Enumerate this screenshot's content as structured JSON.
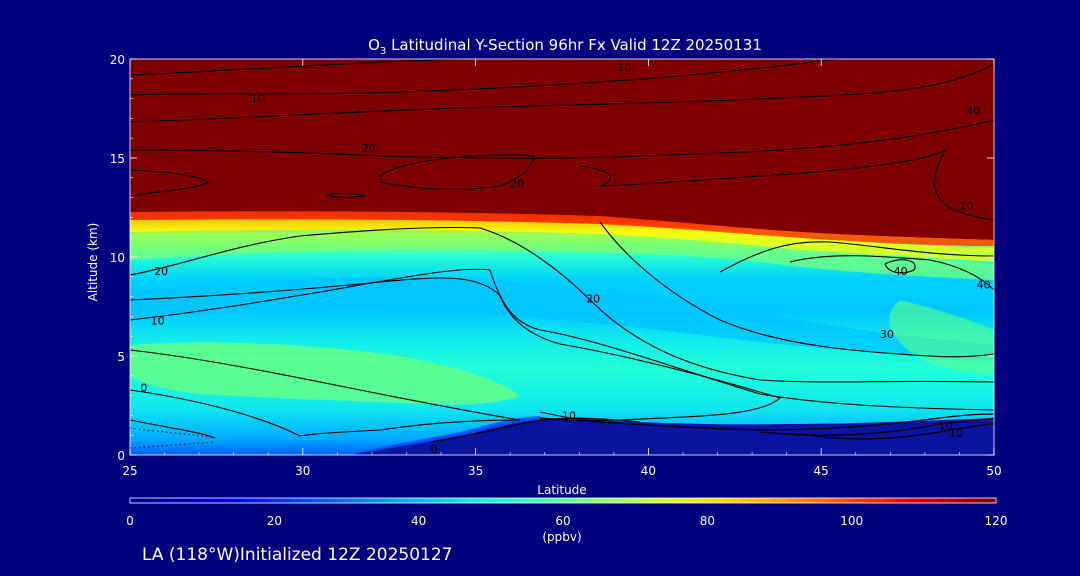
{
  "chart_data": {
    "type": "heatmap",
    "title_prefix": "O",
    "title_subscript": "3",
    "title_rest": " Latitudinal Y-Section 96hr  Fx Valid 12Z 20250131",
    "xlabel": "Latitude",
    "ylabel": "Altitude (km)",
    "xlim": [
      25,
      50
    ],
    "ylim": [
      0,
      20
    ],
    "x_ticks": [
      "25",
      "30",
      "35",
      "40",
      "45",
      "50"
    ],
    "y_ticks": [
      "0",
      "5",
      "10",
      "15",
      "20"
    ],
    "colorbar": {
      "min": 0,
      "max": 120,
      "ticks": [
        "0",
        "20",
        "40",
        "60",
        "80",
        "100",
        "120"
      ],
      "unit": "(ppbv)"
    },
    "contour_labels": [
      {
        "text": "10",
        "lat": 39.3,
        "alt": 19.6
      },
      {
        "text": "10",
        "lat": 28.7,
        "alt": 18.0
      },
      {
        "text": "40",
        "lat": 49.4,
        "alt": 17.4
      },
      {
        "text": "20",
        "lat": 31.9,
        "alt": 15.5
      },
      {
        "text": "20",
        "lat": 36.2,
        "alt": 13.7
      },
      {
        "text": "10",
        "lat": 49.2,
        "alt": 12.6
      },
      {
        "text": "20",
        "lat": 25.9,
        "alt": 9.3
      },
      {
        "text": "40",
        "lat": 47.3,
        "alt": 9.3
      },
      {
        "text": "40",
        "lat": 49.7,
        "alt": 8.6
      },
      {
        "text": "20",
        "lat": 38.4,
        "alt": 7.9
      },
      {
        "text": "10",
        "lat": 25.8,
        "alt": 6.8
      },
      {
        "text": "30",
        "lat": 46.9,
        "alt": 6.1
      },
      {
        "text": "0",
        "lat": 25.4,
        "alt": 3.4
      },
      {
        "text": "10",
        "lat": 37.7,
        "alt": 2.0
      },
      {
        "text": "10",
        "lat": 48.6,
        "alt": 1.5
      },
      {
        "text": "10",
        "lat": 48.9,
        "alt": 1.1
      },
      {
        "text": "0",
        "lat": 33.8,
        "alt": 0.3
      }
    ],
    "grid": false
  },
  "footer": "LA (118°W)Initialized 12Z 20250127",
  "colors": {
    "background": "#00007f",
    "stratosphere": "#7f0000",
    "surface_low": "#0a14a0",
    "text": "#ffffff"
  }
}
